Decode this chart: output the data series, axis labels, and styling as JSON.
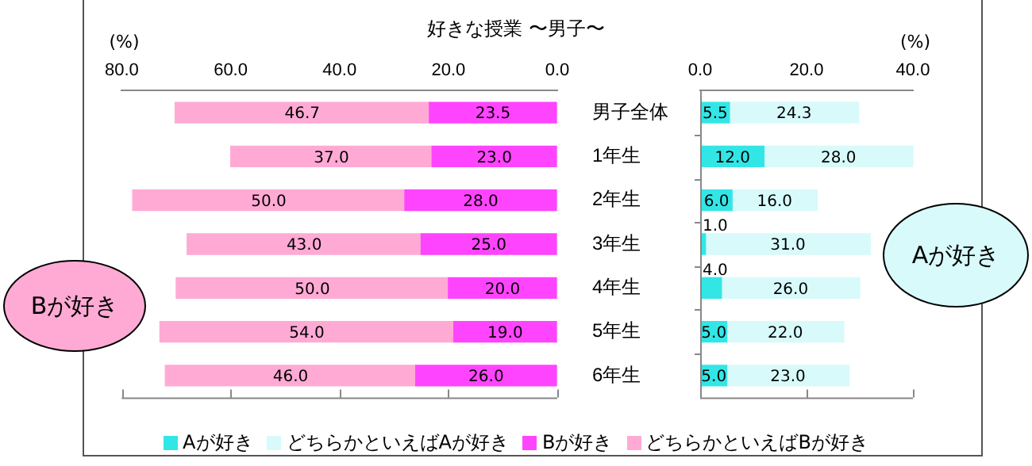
{
  "chart_data": [
    {
      "type": "bar",
      "orientation": "horizontal",
      "stacked": true,
      "title": "好きな授業 〜男子〜",
      "xlabel": "(%)",
      "categories": [
        "男子全体",
        "1年生",
        "2年生",
        "3年生",
        "4年生",
        "5年生",
        "6年生"
      ],
      "series": [
        {
          "name": "Bが好き",
          "color": "#ff44ff",
          "values": [
            23.5,
            23.0,
            28.0,
            25.0,
            20.0,
            19.0,
            26.0
          ],
          "value_labels": [
            "23.5",
            "23.0",
            "28.0",
            "25.0",
            "20.0",
            "19.0",
            "26.0"
          ]
        },
        {
          "name": "どちらかといえばBが好き",
          "color": "#ffaad4",
          "values": [
            46.7,
            37.0,
            50.0,
            43.0,
            50.0,
            54.0,
            46.0
          ],
          "value_labels": [
            "46.7",
            "37.0",
            "50.0",
            "43.0",
            "50.0",
            "54.0",
            "46.0"
          ]
        }
      ],
      "xlim": [
        80,
        0
      ],
      "xticks": [
        {
          "value": 80,
          "label": "80.0"
        },
        {
          "value": 60,
          "label": "60.0"
        },
        {
          "value": 40,
          "label": "40.0"
        },
        {
          "value": 20,
          "label": "20.0"
        },
        {
          "value": 0,
          "label": "0.0"
        }
      ],
      "grid": false,
      "legend": "bottom",
      "annotations": [
        "Bが好き"
      ]
    },
    {
      "type": "bar",
      "orientation": "horizontal",
      "stacked": true,
      "xlabel": "(%)",
      "categories": [
        null,
        null,
        null,
        null,
        null,
        null,
        null
      ],
      "series": [
        {
          "name": "Aが好き",
          "color": "#33e6e6",
          "values": [
            5.5,
            12.0,
            6.0,
            1.0,
            4.0,
            5.0,
            5.0
          ],
          "value_labels": [
            "5.5",
            "12.0",
            "6.0",
            "1.0",
            "4.0",
            "5.0",
            "5.0"
          ]
        },
        {
          "name": "どちらかといえばAが好き",
          "color": "#d8fafa",
          "values": [
            24.3,
            28.0,
            16.0,
            31.0,
            26.0,
            22.0,
            23.0
          ],
          "value_labels": [
            "24.3",
            "28.0",
            "16.0",
            "31.0",
            "26.0",
            "22.0",
            "23.0"
          ]
        }
      ],
      "xlim": [
        0,
        40
      ],
      "xticks": [
        {
          "value": 0,
          "label": "0.0"
        },
        {
          "value": 20,
          "label": "20.0"
        },
        {
          "value": 40,
          "label": "40.0"
        }
      ],
      "grid": false,
      "legend": "bottom",
      "tick_labels": "x",
      "annotations": [
        "Aが好き"
      ]
    }
  ]
}
